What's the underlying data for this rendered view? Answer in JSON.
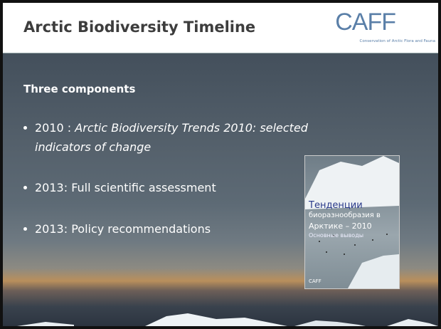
{
  "header": {
    "title": "Arctic Biodiversity Timeline",
    "logo": {
      "text": "CAFF",
      "subtitle": "Conservation of Arctic Flora and Fauna"
    }
  },
  "body": {
    "heading": "Three components",
    "bullets": [
      {
        "year": "2010 :",
        "text": "Arctic Biodiversity Trends 2010: selected indicators of change"
      },
      {
        "text": "2013: Full scientific assessment"
      },
      {
        "text": "2013: Policy recommendations"
      }
    ]
  },
  "cover": {
    "title_lines": [
      "Тенденции",
      "биоразнообразия в",
      "Арктике – 2010"
    ],
    "subtitle": "Основные выводы",
    "logo": "CAFF"
  }
}
